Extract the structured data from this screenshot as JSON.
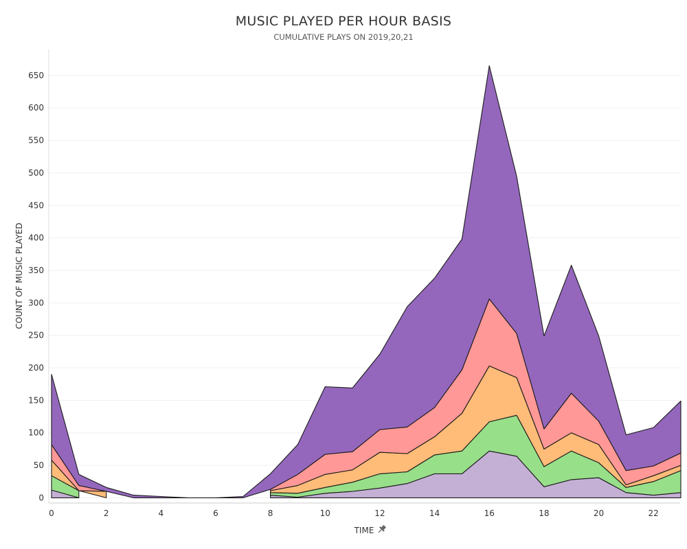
{
  "chart_data": {
    "type": "area",
    "stacked": true,
    "title": "MUSIC PLAYED PER HOUR BASIS",
    "subtitle": "CUMULATIVE PLAYS ON 2019,20,21",
    "xlabel": "TIME",
    "ylabel": "COUNT OF MUSIC PLAYED",
    "x": [
      0,
      1,
      2,
      3,
      4,
      5,
      6,
      7,
      8,
      9,
      10,
      11,
      12,
      13,
      14,
      15,
      16,
      17,
      18,
      19,
      20,
      21,
      22,
      23
    ],
    "xticks": [
      0,
      2,
      4,
      6,
      8,
      10,
      12,
      14,
      16,
      18,
      20,
      22
    ],
    "yticks": [
      0,
      50,
      100,
      150,
      200,
      250,
      300,
      350,
      400,
      450,
      500,
      550,
      600,
      650
    ],
    "xlim": [
      0,
      23
    ],
    "ylim": [
      -8,
      690
    ],
    "grid": true,
    "legend": "none",
    "series": [
      {
        "color": "#c5b0d5",
        "values": [
          12,
          0,
          null,
          null,
          null,
          null,
          null,
          null,
          4,
          1,
          7,
          10,
          15,
          22,
          37,
          37,
          72,
          64,
          17,
          28,
          31,
          8,
          4,
          8
        ]
      },
      {
        "color": "#98df8a",
        "values": [
          22,
          11,
          null,
          null,
          null,
          null,
          null,
          null,
          4,
          6,
          9,
          14,
          22,
          18,
          29,
          35,
          45,
          63,
          31,
          44,
          23,
          8,
          21,
          34
        ]
      },
      {
        "color": "#ffbb78",
        "values": [
          24,
          0,
          10,
          null,
          null,
          null,
          null,
          null,
          3,
          12,
          20,
          19,
          33,
          28,
          28,
          58,
          86,
          58,
          27,
          28,
          28,
          4,
          9,
          8
        ]
      },
      {
        "color": "#ff9896",
        "values": [
          24,
          8,
          0,
          null,
          null,
          null,
          null,
          null,
          2,
          17,
          31,
          28,
          35,
          41,
          45,
          67,
          103,
          68,
          31,
          61,
          36,
          22,
          15,
          19
        ]
      },
      {
        "color": "#9467bd",
        "values": [
          108,
          17,
          6,
          4,
          2,
          0,
          0,
          2,
          24,
          46,
          104,
          98,
          116,
          185,
          199,
          201,
          359,
          242,
          143,
          197,
          131,
          55,
          59,
          80
        ]
      }
    ]
  },
  "x_axis": {
    "pin_icon": "pin-icon"
  }
}
